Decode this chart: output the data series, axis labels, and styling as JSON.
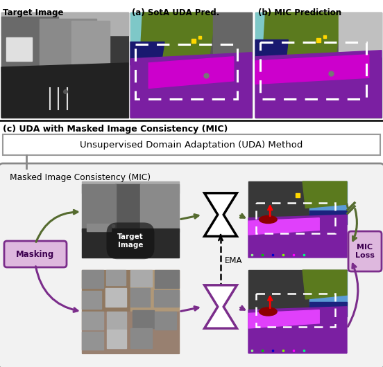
{
  "title_top": "Target Image",
  "title_a": "(a) SotA UDA Pred.",
  "title_b": "(b) MIC Prediction",
  "title_c": "(c) UDA with Masked Image Consistency (MIC)",
  "uda_box_text": "Unsupervised Domain Adaptation (UDA) Method",
  "mic_box_text": "Masked Image Consistency (MIC)",
  "masking_text": "Masking",
  "target_image_text": "Target\nImage",
  "ema_text": "EMA",
  "mic_loss_text": "MIC\nLoss",
  "olive": "#556B2F",
  "purple": "#7B2D8B",
  "light_purple": "#D4A8D4",
  "seg_purple_dark": "#6A0DAD",
  "seg_purple_bright": "#CC00CC",
  "seg_magenta": "#FF00FF",
  "seg_green": "#6B8E23",
  "seg_blue_dark": "#00008B",
  "seg_sky": "#87CEEB",
  "seg_gray": "#808080"
}
